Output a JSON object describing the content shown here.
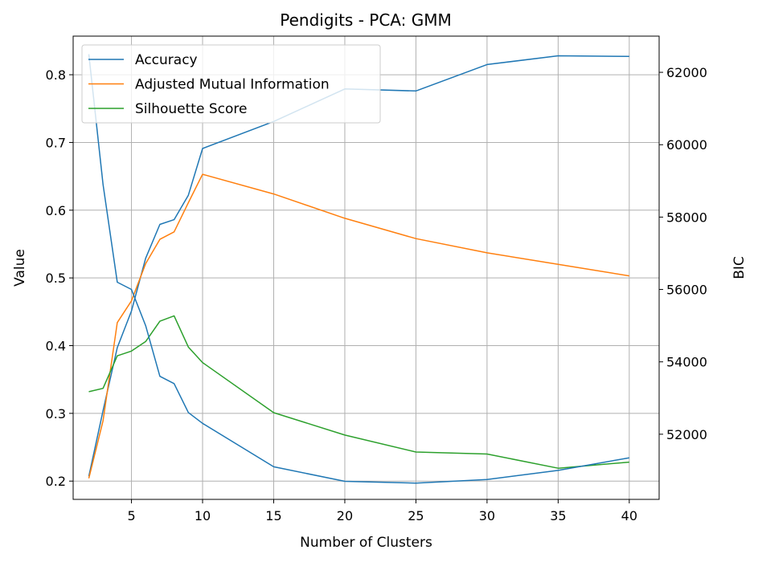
{
  "chart_data": {
    "type": "line",
    "title": "Pendigits - PCA: GMM",
    "xlabel": "Number of Clusters",
    "ylabel": "Value",
    "y2label": "BIC",
    "x": [
      2,
      3,
      4,
      5,
      6,
      7,
      8,
      9,
      10,
      15,
      20,
      25,
      30,
      35,
      40
    ],
    "xlim": [
      0.9,
      42.1
    ],
    "ylim": [
      0.173,
      0.857
    ],
    "y2lim": [
      50200,
      63000
    ],
    "x_ticks": [
      5,
      10,
      15,
      20,
      25,
      30,
      35,
      40
    ],
    "y_ticks": [
      0.2,
      0.3,
      0.4,
      0.5,
      0.6,
      0.7,
      0.8
    ],
    "y2_ticks": [
      52000,
      54000,
      56000,
      58000,
      60000,
      62000
    ],
    "grid": true,
    "legend_position": "top-left",
    "series": [
      {
        "name": "Accuracy",
        "axis": "left",
        "color": "#1f77b4",
        "values": [
          0.207,
          0.304,
          0.397,
          0.451,
          0.529,
          0.579,
          0.586,
          0.622,
          0.691,
          0.731,
          0.779,
          0.776,
          0.815,
          0.828,
          0.827
        ]
      },
      {
        "name": "Adjusted Mutual Information",
        "axis": "left",
        "color": "#ff7f0e",
        "values": [
          0.204,
          0.289,
          0.434,
          0.466,
          0.521,
          0.557,
          0.568,
          0.611,
          0.653,
          0.624,
          0.588,
          0.558,
          0.537,
          0.52,
          0.503
        ]
      },
      {
        "name": "Silhouette Score",
        "axis": "left",
        "color": "#2ca02c",
        "values": [
          0.332,
          0.337,
          0.385,
          0.392,
          0.406,
          0.436,
          0.444,
          0.398,
          0.375,
          0.301,
          0.268,
          0.243,
          0.24,
          0.219,
          0.228
        ]
      },
      {
        "axis": "right",
        "color": "#1f77b4",
        "values": [
          62500,
          58900,
          56200,
          56000,
          55000,
          53600,
          53400,
          52600,
          52300,
          51100,
          50700,
          50650,
          50750,
          51000,
          51350
        ]
      }
    ]
  }
}
